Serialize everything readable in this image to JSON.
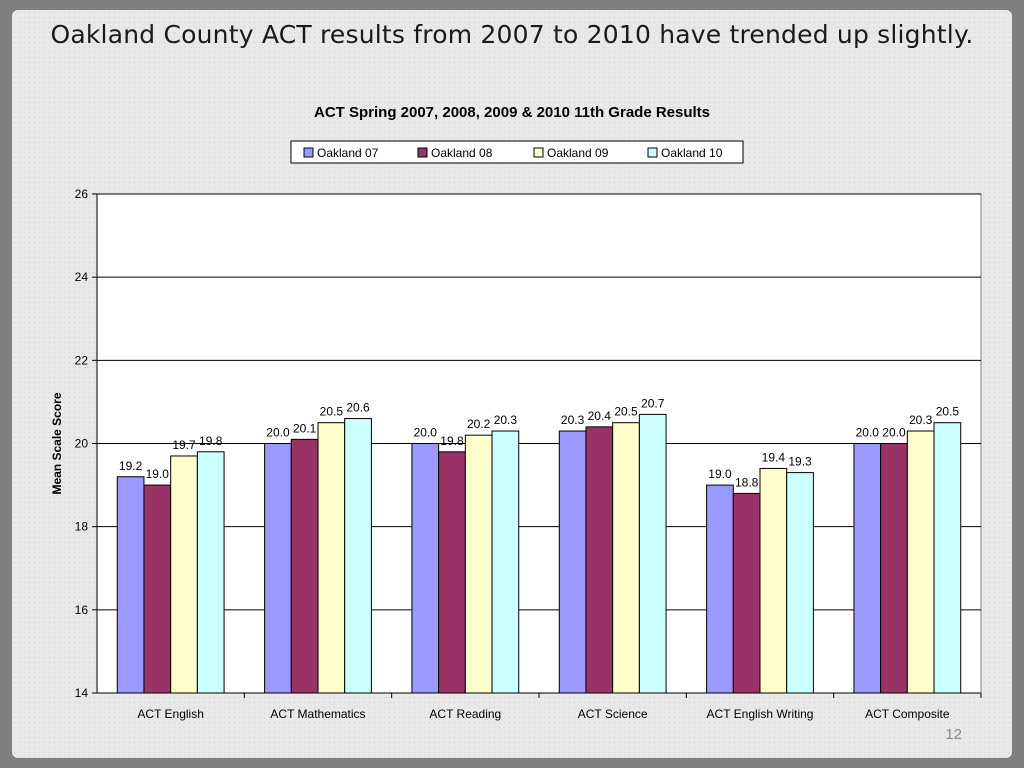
{
  "slide": {
    "title": "Oakland County ACT results from 2007 to 2010 have trended up slightly.",
    "page_number": "12"
  },
  "colors": {
    "series": [
      "#9999ff",
      "#993366",
      "#ffffcc",
      "#ccffff"
    ],
    "plot_background": "#ffffff",
    "gridline": "#000000",
    "bar_border": "#000000"
  },
  "chart_data": {
    "type": "bar",
    "title": "ACT Spring 2007, 2008, 2009 & 2010 11th Grade Results",
    "xlabel": "",
    "ylabel": "Mean Scale Score",
    "ylim": [
      14,
      26
    ],
    "yticks": [
      14,
      16,
      18,
      20,
      22,
      24,
      26
    ],
    "grid": true,
    "legend_position": "top",
    "categories": [
      "ACT English",
      "ACT Mathematics",
      "ACT Reading",
      "ACT Science",
      "ACT English Writing",
      "ACT Composite"
    ],
    "series": [
      {
        "name": "Oakland 07",
        "values": [
          19.2,
          20.0,
          20.0,
          20.3,
          19.0,
          20.0
        ],
        "labels": [
          "19.2",
          "20.0",
          "20.0",
          "20.3",
          "19.0",
          "20.0"
        ]
      },
      {
        "name": "Oakland 08",
        "values": [
          19.0,
          20.1,
          19.8,
          20.4,
          18.8,
          20.0
        ],
        "labels": [
          "19.0",
          "20.1",
          "19.8",
          "20.4",
          "18.8",
          "20.0"
        ]
      },
      {
        "name": "Oakland 09",
        "values": [
          19.7,
          20.5,
          20.2,
          20.5,
          19.4,
          20.3
        ],
        "labels": [
          "19.7",
          "20.5",
          "20.2",
          "20.5",
          "19.4",
          "20.3"
        ]
      },
      {
        "name": "Oakland 10",
        "values": [
          19.8,
          20.6,
          20.3,
          20.7,
          19.3,
          20.5
        ],
        "labels": [
          "19.8",
          "20.6",
          "20.3",
          "20.7",
          "19.3",
          "20.5"
        ]
      }
    ]
  }
}
